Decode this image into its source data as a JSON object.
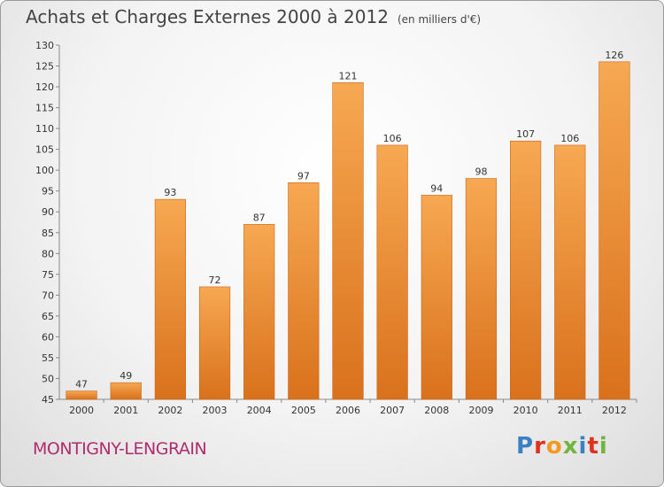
{
  "header": {
    "title": "Achats et Charges Externes 2000 à 2012",
    "unit_note": "(en milliers d'€)"
  },
  "footer": {
    "location": "MONTIGNY-LENGRAIN",
    "brand": "Proxiti"
  },
  "colors": {
    "bar_top": "#f7a852",
    "bar_bottom": "#d9711c",
    "location_text": "#b12c6e",
    "brand_letters": [
      "#3b7fc4",
      "#e0301e",
      "#f29a1d",
      "#71b43f",
      "#3b7fc4",
      "#e0301e",
      "#71b43f"
    ]
  },
  "chart_data": {
    "type": "bar",
    "title": "Achats et Charges Externes 2000 à 2012",
    "subtitle": "(en milliers d'€)",
    "categories": [
      "2000",
      "2001",
      "2002",
      "2003",
      "2004",
      "2005",
      "2006",
      "2007",
      "2008",
      "2009",
      "2010",
      "2011",
      "2012"
    ],
    "values": [
      47,
      49,
      93,
      72,
      87,
      97,
      121,
      106,
      94,
      98,
      107,
      106,
      126
    ],
    "ylim": [
      45,
      130
    ],
    "yticks": [
      45,
      50,
      55,
      60,
      65,
      70,
      75,
      80,
      85,
      90,
      95,
      100,
      105,
      110,
      115,
      120,
      125,
      130
    ],
    "grid": false,
    "legend": "none"
  }
}
